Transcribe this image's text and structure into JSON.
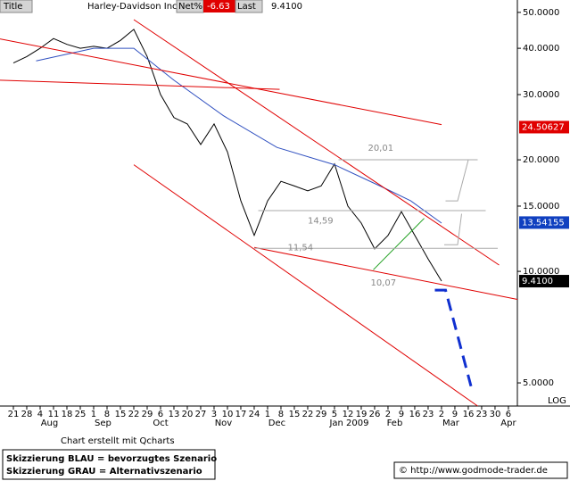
{
  "header": {
    "title": "Title",
    "name": "Harley-Davidson Inc",
    "net_label": "Net%",
    "net_value": "-6.63",
    "last_label": "Last",
    "last_value": "9.4100"
  },
  "chart_data": {
    "type": "line",
    "log_scale": true,
    "xlim": [
      -1,
      37.67
    ],
    "ylim": [
      4.33,
      54
    ],
    "xticks": [
      {
        "value": 0,
        "label": "21"
      },
      {
        "value": 1,
        "label": "28"
      },
      {
        "value": 2,
        "label": "4"
      },
      {
        "value": 3,
        "label": "11"
      },
      {
        "value": 4,
        "label": "18"
      },
      {
        "value": 5,
        "label": "25"
      },
      {
        "value": 6,
        "label": "1"
      },
      {
        "value": 7,
        "label": "8"
      },
      {
        "value": 8,
        "label": "15"
      },
      {
        "value": 9,
        "label": "22"
      },
      {
        "value": 10,
        "label": "29"
      },
      {
        "value": 11,
        "label": "6"
      },
      {
        "value": 12,
        "label": "13"
      },
      {
        "value": 13,
        "label": "20"
      },
      {
        "value": 14,
        "label": "27"
      },
      {
        "value": 15,
        "label": "3"
      },
      {
        "value": 16,
        "label": "10"
      },
      {
        "value": 17,
        "label": "17"
      },
      {
        "value": 18,
        "label": "24"
      },
      {
        "value": 19,
        "label": "1"
      },
      {
        "value": 20,
        "label": "8"
      },
      {
        "value": 21,
        "label": "15"
      },
      {
        "value": 22,
        "label": "22"
      },
      {
        "value": 23,
        "label": "29"
      },
      {
        "value": 24,
        "label": "5"
      },
      {
        "value": 25,
        "label": "12"
      },
      {
        "value": 26,
        "label": "19"
      },
      {
        "value": 27,
        "label": "26"
      },
      {
        "value": 28,
        "label": "2"
      },
      {
        "value": 29,
        "label": "9"
      },
      {
        "value": 30,
        "label": "16"
      },
      {
        "value": 31,
        "label": "23"
      },
      {
        "value": 32,
        "label": "2"
      },
      {
        "value": 33,
        "label": "9"
      },
      {
        "value": 34,
        "label": "16"
      },
      {
        "value": 35,
        "label": "23"
      },
      {
        "value": 36,
        "label": "30"
      },
      {
        "value": 37,
        "label": "6"
      }
    ],
    "month_labels": [
      {
        "value": 2.7,
        "label": "Aug"
      },
      {
        "value": 6.7,
        "label": "Sep"
      },
      {
        "value": 11,
        "label": "Oct"
      },
      {
        "value": 15.7,
        "label": "Nov"
      },
      {
        "value": 19.7,
        "label": "Dec"
      },
      {
        "value": 25.1,
        "label": "Jan 2009"
      },
      {
        "value": 28.5,
        "label": "Feb"
      },
      {
        "value": 32.7,
        "label": "Mar"
      },
      {
        "value": 37,
        "label": "Apr"
      }
    ],
    "yticks": [
      {
        "value": 50,
        "label": "50.0000"
      },
      {
        "value": 40,
        "label": "40.0000"
      },
      {
        "value": 30,
        "label": "30.0000"
      },
      {
        "value": 20,
        "label": "20.0000"
      },
      {
        "value": 15,
        "label": "15.0000"
      },
      {
        "value": 10,
        "label": "10.0000"
      },
      {
        "value": 5,
        "label": "5.0000"
      }
    ],
    "scale_label": "LOG",
    "markers": [
      {
        "value": 24.50627,
        "label": "24.50627",
        "color": "#e00000"
      },
      {
        "value": 13.54155,
        "label": "13.54155",
        "color": "#1040c0"
      },
      {
        "value": 9.41,
        "label": "9.4100",
        "color": "#000000"
      }
    ],
    "series": [
      {
        "color": "#000000",
        "x": [
          0,
          1,
          2,
          3,
          4,
          5,
          6,
          7,
          8,
          9,
          10,
          11,
          12,
          13,
          14,
          15,
          16,
          17,
          18,
          19,
          20,
          21,
          22,
          23,
          24,
          25,
          26,
          27,
          28,
          29,
          30,
          31,
          32
        ],
        "values": [
          36.5,
          38,
          40,
          42.5,
          41,
          40,
          40.5,
          40,
          42,
          45,
          38,
          30,
          26,
          25,
          22,
          25,
          21,
          15.5,
          12.5,
          15.5,
          17.5,
          17,
          16.5,
          17,
          19.5,
          15,
          13.5,
          11.5,
          12.5,
          14.5,
          12.5,
          10.8,
          9.41
        ]
      },
      {
        "color": "#3050c0",
        "x": [
          1.7,
          6,
          9,
          12,
          15.7,
          19.7,
          24,
          27.7,
          29.7,
          32
        ],
        "values": [
          37,
          40,
          40,
          32.8,
          26.3,
          21.6,
          19.4,
          16.8,
          15.5,
          13.5
        ]
      },
      {
        "color": "#e00000",
        "x": [
          -1,
          32
        ],
        "values": [
          42.4,
          24.9
        ]
      },
      {
        "color": "#e00000",
        "x": [
          -1,
          19.9
        ],
        "values": [
          32.8,
          31
        ]
      },
      {
        "color": "#e00000",
        "x": [
          9,
          36.3
        ],
        "values": [
          47.8,
          10.4
        ]
      },
      {
        "color": "#e00000",
        "x": [
          9,
          34.7
        ],
        "values": [
          19.4,
          4.33
        ]
      },
      {
        "color": "#e00000",
        "x": [
          18,
          37.67
        ],
        "values": [
          11.6,
          8.4
        ]
      },
      {
        "color": "#20a020",
        "x": [
          26.9,
          30.7
        ],
        "values": [
          10.1,
          13.9
        ]
      },
      {
        "color": "#aaaaaa",
        "x": [
          24.3,
          34.7
        ],
        "values": [
          20.01,
          20.01
        ]
      },
      {
        "color": "#aaaaaa",
        "x": [
          18.3,
          35.3
        ],
        "values": [
          14.59,
          14.59
        ]
      },
      {
        "color": "#aaaaaa",
        "x": [
          18,
          36.2
        ],
        "values": [
          11.54,
          11.54
        ]
      },
      {
        "color": "#aaaaaa",
        "x": [
          32.3,
          33.2,
          34
        ],
        "values": [
          15.5,
          15.5,
          20
        ]
      },
      {
        "color": "#aaaaaa",
        "x": [
          32.2,
          33.2,
          33.5
        ],
        "values": [
          11.8,
          11.8,
          14.3
        ]
      },
      {
        "color": "#1030d0",
        "dash": true,
        "x": [
          31.5,
          32.3,
          34.2
        ],
        "values": [
          8.9,
          8.9,
          4.9
        ]
      }
    ],
    "annotations": [
      {
        "text": "20,01",
        "x": 26.5,
        "y": 21.5
      },
      {
        "text": "14,59",
        "x": 22,
        "y": 13.7
      },
      {
        "text": "11,54",
        "x": 20.5,
        "y": 11.6
      },
      {
        "text": "10,07",
        "x": 26.7,
        "y": 9.3
      }
    ]
  },
  "footer": {
    "credit": "Chart erstellt mit Qcharts",
    "blue": "Skizzierung BLAU = bevorzugtes Szenario",
    "gray": "Skizzierung GRAU = Alternativszenario",
    "copyright": "© http://www.godmode-trader.de"
  }
}
